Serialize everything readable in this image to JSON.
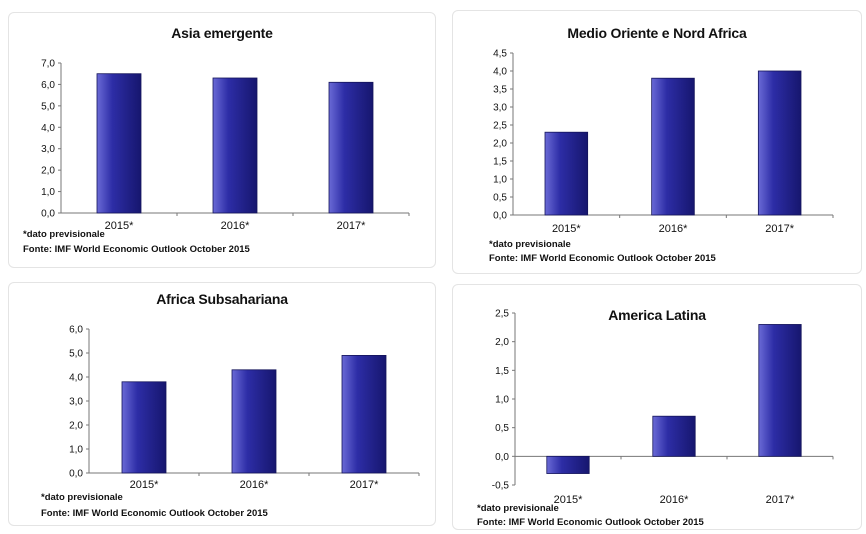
{
  "notes": {
    "footnote": "*dato previsionale",
    "source": "Fonte: IMF World Economic Outlook October 2015"
  },
  "colors": {
    "bar_top": "#6a6ad6",
    "bar_mid": "#2d2da6",
    "bar_dark": "#16166e"
  },
  "chart_data": [
    {
      "type": "bar",
      "title": "Asia emergente",
      "categories": [
        "2015*",
        "2016*",
        "2017*"
      ],
      "values": [
        6.5,
        6.3,
        6.1
      ],
      "ylim": [
        0,
        7
      ],
      "yticks": [
        "0,0",
        "1,0",
        "2,0",
        "3,0",
        "4,0",
        "5,0",
        "6,0",
        "7,0"
      ],
      "grid": false
    },
    {
      "type": "bar",
      "title": "Medio Oriente e Nord Africa",
      "categories": [
        "2015*",
        "2016*",
        "2017*"
      ],
      "values": [
        2.3,
        3.8,
        4.0
      ],
      "ylim": [
        0,
        4.5
      ],
      "yticks": [
        "0,0",
        "0,5",
        "1,0",
        "1,5",
        "2,0",
        "2,5",
        "3,0",
        "3,5",
        "4,0",
        "4,5"
      ],
      "grid": false
    },
    {
      "type": "bar",
      "title": "Africa Subsahariana",
      "categories": [
        "2015*",
        "2016*",
        "2017*"
      ],
      "values": [
        3.8,
        4.3,
        4.9
      ],
      "ylim": [
        0,
        6
      ],
      "yticks": [
        "0,0",
        "1,0",
        "2,0",
        "3,0",
        "4,0",
        "5,0",
        "6,0"
      ],
      "grid": false
    },
    {
      "type": "bar",
      "title": "America Latina",
      "categories": [
        "2015*",
        "2016*",
        "2017*"
      ],
      "values": [
        -0.3,
        0.7,
        2.3
      ],
      "ylim": [
        -0.5,
        2.5
      ],
      "yticks": [
        "-0,5",
        "0,0",
        "0,5",
        "1,0",
        "1,5",
        "2,0",
        "2,5"
      ],
      "grid": false
    }
  ]
}
